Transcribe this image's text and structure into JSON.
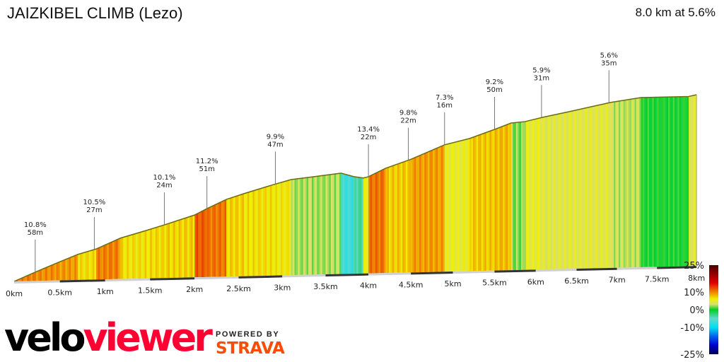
{
  "header": {
    "title": "JAIZKIBEL CLIMB (Lezo)",
    "summary": "8.0 km at 5.6%"
  },
  "chart_data": {
    "type": "area",
    "title": "JAIZKIBEL CLIMB (Lezo)",
    "xlabel": "",
    "ylabel": "",
    "xlim": [
      0,
      8
    ],
    "x_ticks": [
      "0km",
      "0.5km",
      "1km",
      "1.5km",
      "2km",
      "2.5km",
      "3km",
      "3.5km",
      "4km",
      "4.5km",
      "5km",
      "5.5km",
      "6km",
      "6.5km",
      "7km",
      "7.5km",
      "8km"
    ],
    "profile": {
      "km": [
        0,
        0.23,
        0.47,
        0.7,
        0.9,
        1.17,
        1.45,
        1.66,
        2.0,
        2.14,
        2.36,
        2.56,
        2.9,
        3.1,
        3.35,
        3.68,
        3.83,
        3.94,
        4.0,
        4.2,
        4.5,
        4.7,
        4.9,
        5.2,
        5.51,
        5.7,
        5.87,
        6.08,
        6.4,
        6.92,
        7.3,
        7.9,
        8.0
      ],
      "elev_m": [
        0,
        23,
        46,
        67,
        80,
        107,
        125,
        139,
        163,
        179,
        202,
        216,
        238,
        250,
        256,
        264,
        254,
        250,
        253,
        274,
        296,
        314,
        332,
        347,
        370,
        385,
        388,
        398,
        411,
        433,
        444,
        444,
        448
      ]
    },
    "annotations": [
      {
        "km": 0.23,
        "gradient": "10.8%",
        "length": "58m"
      },
      {
        "km": 0.88,
        "gradient": "10.5%",
        "length": "27m"
      },
      {
        "km": 1.66,
        "gradient": "10.1%",
        "length": "24m"
      },
      {
        "km": 2.14,
        "gradient": "11.2%",
        "length": "51m"
      },
      {
        "km": 2.92,
        "gradient": "9.9%",
        "length": "47m"
      },
      {
        "km": 4.0,
        "gradient": "13.4%",
        "length": "22m"
      },
      {
        "km": 4.47,
        "gradient": "9.8%",
        "length": "22m"
      },
      {
        "km": 4.9,
        "gradient": "7.3%",
        "length": "16m"
      },
      {
        "km": 5.5,
        "gradient": "9.2%",
        "length": "50m"
      },
      {
        "km": 6.07,
        "gradient": "5.9%",
        "length": "31m"
      },
      {
        "km": 6.9,
        "gradient": "5.6%",
        "length": "35m"
      }
    ],
    "legend": {
      "labels": [
        "25%",
        "10%",
        "0%",
        "-10%",
        "-25%"
      ],
      "stops": [
        {
          "value": 25,
          "color": "#4a0000"
        },
        {
          "value": 15,
          "color": "#e00000"
        },
        {
          "value": 10,
          "color": "#f08000"
        },
        {
          "value": 6,
          "color": "#f0f000"
        },
        {
          "value": 3,
          "color": "#d8e070"
        },
        {
          "value": 0,
          "color": "#00d020"
        },
        {
          "value": -5,
          "color": "#60d8d0"
        },
        {
          "value": -10,
          "color": "#00e0f0"
        },
        {
          "value": -15,
          "color": "#0060f0"
        },
        {
          "value": -20,
          "color": "#0000d0"
        },
        {
          "value": -25,
          "color": "#000050"
        }
      ],
      "placement": "bottom-right"
    }
  },
  "branding": {
    "velo": "velo",
    "viewer": "viewer",
    "powered_by": "POWERED BY",
    "strava": "STRAVA"
  }
}
